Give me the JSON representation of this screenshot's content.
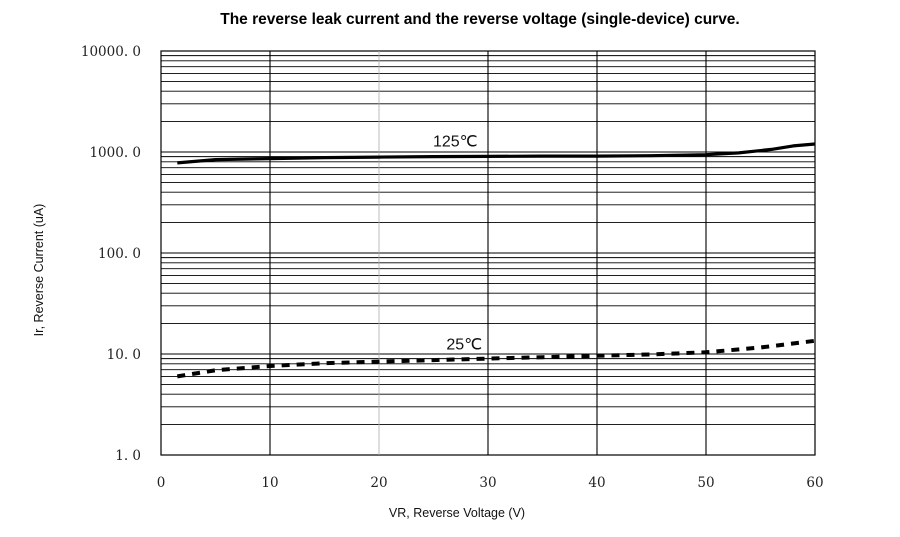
{
  "chart_data": {
    "type": "line",
    "title": "The reverse leak current and the reverse voltage (single-device) curve.",
    "xlabel": "VR, Reverse Voltage (V)",
    "ylabel": "Ir, Reverse Current (uA)",
    "xlim": [
      0,
      60
    ],
    "ylim": [
      1,
      10000
    ],
    "yscale": "log",
    "grid": true,
    "x_ticks": [
      "0",
      "10",
      "20",
      "30",
      "40",
      "50",
      "60"
    ],
    "y_ticks": [
      "1.0",
      "10.0",
      "100.0",
      "1000.0",
      "10000.0"
    ],
    "series": [
      {
        "name": "125℃",
        "style": "solid",
        "x": [
          1.5,
          5,
          10,
          15,
          20,
          25,
          30,
          35,
          40,
          45,
          50,
          53,
          56,
          58,
          60
        ],
        "y": [
          780,
          840,
          860,
          880,
          890,
          900,
          905,
          910,
          910,
          920,
          940,
          980,
          1060,
          1150,
          1200
        ]
      },
      {
        "name": "25℃",
        "style": "dashed",
        "x": [
          1.5,
          5,
          10,
          15,
          20,
          25,
          30,
          35,
          40,
          45,
          50,
          55,
          60
        ],
        "y": [
          6.0,
          6.9,
          7.6,
          8.1,
          8.4,
          8.7,
          9.0,
          9.3,
          9.6,
          9.9,
          10.4,
          11.6,
          13.5
        ]
      }
    ]
  }
}
